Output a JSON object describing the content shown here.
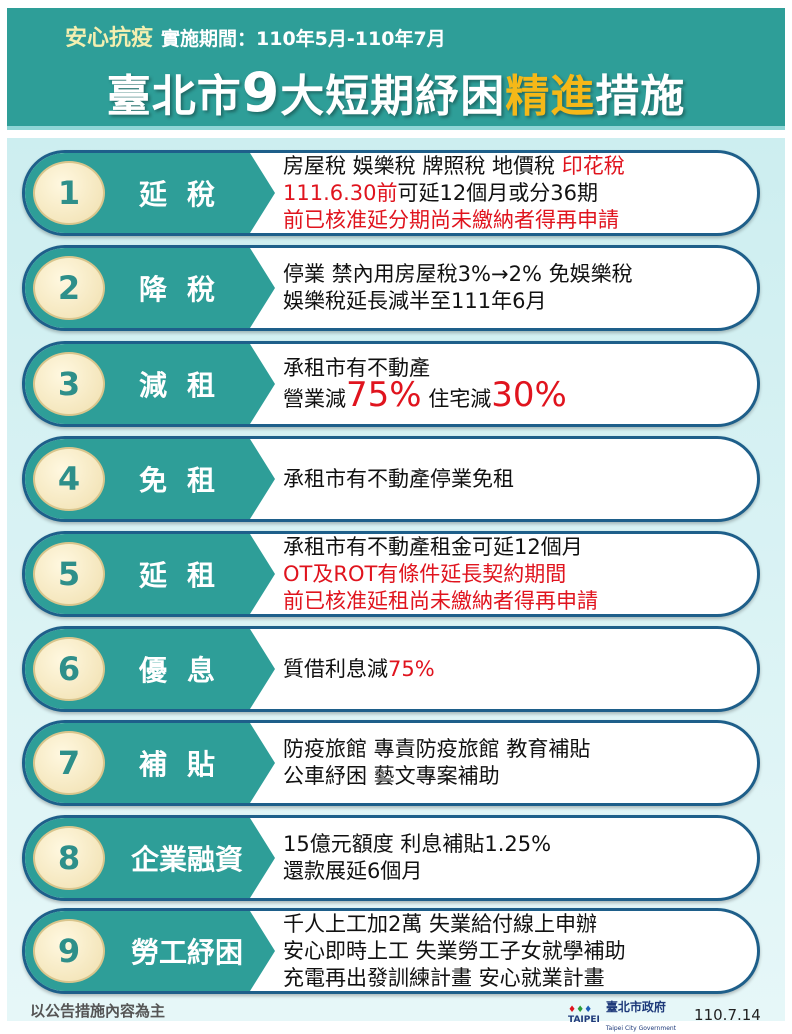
{
  "header": {
    "tag": "安心抗疫",
    "period": "實施期間：110年5月-110年7月",
    "title_pre": "臺北市",
    "title_num": "9",
    "title_mid": "大短期紓困",
    "title_hl": "精進",
    "title_post": "措施"
  },
  "colors": {
    "teal": "#2e9e98",
    "highlight": "#f5b818",
    "red": "#e0141e",
    "border": "#1e5f8a"
  },
  "rows": [
    {
      "num": "1",
      "label": "延稅",
      "lines": [
        [
          {
            "t": "房屋稅  娛樂稅  牌照稅  地價稅 "
          },
          {
            "t": "印花稅",
            "s": "red"
          }
        ],
        [
          {
            "t": "111.6.30前",
            "s": "red"
          },
          {
            "t": "可延12個月或分36期"
          }
        ],
        [
          {
            "t": "前已核准延分期尚未繳納者得再申請",
            "s": "red"
          }
        ]
      ]
    },
    {
      "num": "2",
      "label": "降稅",
      "lines": [
        [
          {
            "t": "停業 禁內用房屋稅3%→2% 免娛樂稅"
          }
        ],
        [
          {
            "t": "娛樂稅延長減半至111年6月"
          }
        ]
      ]
    },
    {
      "num": "3",
      "label": "減租",
      "lines": [
        [
          {
            "t": "承租市有不動產"
          }
        ],
        [
          {
            "t": "營業減"
          },
          {
            "t": "75%",
            "s": "bigred"
          },
          {
            "t": " 住宅減"
          },
          {
            "t": "30%",
            "s": "bigred"
          }
        ]
      ]
    },
    {
      "num": "4",
      "label": "免租",
      "lines": [
        [
          {
            "t": "承租市有不動產停業免租"
          }
        ]
      ]
    },
    {
      "num": "5",
      "label": "延租",
      "lines": [
        [
          {
            "t": "承租市有不動產租金可延12個月"
          }
        ],
        [
          {
            "t": "OT及ROT有條件延長契約期間",
            "s": "red"
          }
        ],
        [
          {
            "t": "前已核准延租尚未繳納者得再申請",
            "s": "red"
          }
        ]
      ]
    },
    {
      "num": "6",
      "label": "優息",
      "lines": [
        [
          {
            "t": "質借利息減"
          },
          {
            "t": "75%",
            "s": "red"
          }
        ]
      ]
    },
    {
      "num": "7",
      "label": "補貼",
      "lines": [
        [
          {
            "t": "防疫旅館    專責防疫旅館    教育補貼"
          }
        ],
        [
          {
            "t": "公車紓困    藝文專案補助"
          }
        ]
      ]
    },
    {
      "num": "8",
      "label": "企業融資",
      "lines": [
        [
          {
            "t": "15億元額度 利息補貼1.25%"
          }
        ],
        [
          {
            "t": "還款展延6個月"
          }
        ]
      ]
    },
    {
      "num": "9",
      "label": "勞工紓困",
      "lines": [
        [
          {
            "t": "千人上工加2萬    失業給付線上申辦"
          }
        ],
        [
          {
            "t": "安心即時上工    失業勞工子女就學補助"
          }
        ],
        [
          {
            "t": "充電再出發訓練計畫    安心就業計畫"
          }
        ]
      ]
    }
  ],
  "footer": {
    "note": "以公告措施內容為主",
    "logo_text": "TAIPEI",
    "gov": "臺北市政府",
    "gov_en": "Taipei City Government",
    "date": "110.7.14"
  }
}
